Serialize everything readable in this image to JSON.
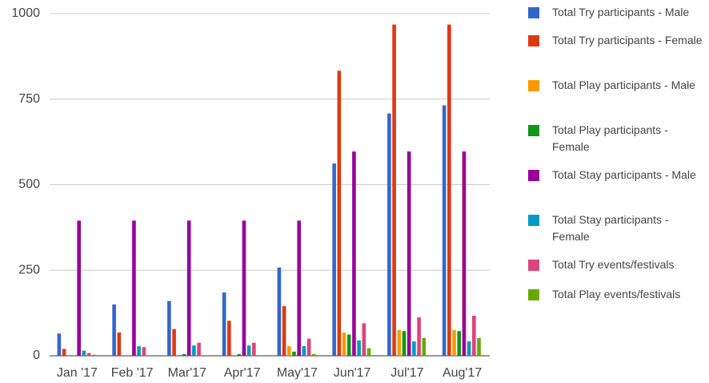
{
  "chart_data": {
    "type": "bar",
    "categories": [
      "Jan '17",
      "Feb '17",
      "Mar'17",
      "Apr'17",
      "May'17",
      "Jun'17",
      "Jul'17",
      "Aug'17"
    ],
    "series": [
      {
        "name": "Total Try participants - Male",
        "color": "#3366cc",
        "values": [
          65,
          150,
          160,
          185,
          258,
          562,
          708,
          732
        ]
      },
      {
        "name": "Total Try participants - Female",
        "color": "#dc3912",
        "values": [
          20,
          68,
          78,
          102,
          145,
          833,
          968,
          968
        ]
      },
      {
        "name": "Total Play participants - Male",
        "color": "#ff9900",
        "values": [
          0,
          0,
          0,
          0,
          28,
          68,
          75,
          75
        ]
      },
      {
        "name": "Total Play participants - Female",
        "color": "#109618",
        "values": [
          0,
          0,
          5,
          5,
          12,
          62,
          72,
          72
        ]
      },
      {
        "name": "Total Stay participants - Male",
        "color": "#990099",
        "values": [
          395,
          395,
          395,
          395,
          395,
          597,
          597,
          597
        ]
      },
      {
        "name": "Total Stay participants - Female",
        "color": "#0099c6",
        "values": [
          15,
          28,
          30,
          30,
          28,
          45,
          42,
          42
        ]
      },
      {
        "name": "Total Try events/festivals",
        "color": "#dd4477",
        "values": [
          8,
          25,
          38,
          38,
          50,
          95,
          112,
          117
        ]
      },
      {
        "name": "Total Play events/festivals",
        "color": "#66aa00",
        "values": [
          3,
          0,
          0,
          0,
          5,
          22,
          52,
          52
        ]
      }
    ],
    "ylim": [
      0,
      1000
    ],
    "yticks": [
      0,
      250,
      500,
      750,
      1000
    ],
    "grid": true,
    "legend": "right"
  }
}
